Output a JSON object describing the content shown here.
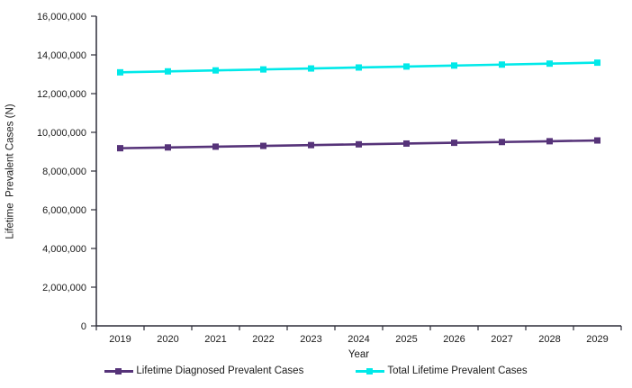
{
  "chart": {
    "y_axis_title": "Lifetime  Prevalent Cases (N)",
    "x_axis_label": "Year"
  },
  "colors": {
    "axis": "#2f2f3a",
    "text": "#1a1a1a",
    "diagnosed_series": "#563379",
    "total_series": "#00e9e9"
  },
  "chart_data": {
    "type": "line",
    "title": "",
    "xlabel": "Year",
    "ylabel": "Lifetime  Prevalent Cases (N)",
    "x": [
      2019,
      2020,
      2021,
      2022,
      2023,
      2024,
      2025,
      2026,
      2027,
      2028,
      2029
    ],
    "series": [
      {
        "name": "Lifetime Diagnosed Prevalent Cases",
        "color": "#563379",
        "marker": "square",
        "values": [
          9180000,
          9220000,
          9260000,
          9300000,
          9340000,
          9380000,
          9420000,
          9460000,
          9500000,
          9540000,
          9580000
        ]
      },
      {
        "name": "Total Lifetime Prevalent Cases",
        "color": "#00e9e9",
        "marker": "square",
        "values": [
          13100000,
          13150000,
          13200000,
          13250000,
          13300000,
          13350000,
          13400000,
          13450000,
          13500000,
          13550000,
          13600000
        ]
      }
    ],
    "ylim": [
      0,
      16000000
    ],
    "y_tick_interval": 2000000,
    "y_tick_labels": [
      "0",
      "2,000,000",
      "4,000,000",
      "6,000,000",
      "8,000,000",
      "10,000,000",
      "12,000,000",
      "14,000,000",
      "16,000,000"
    ],
    "grid": false,
    "legend_position": "bottom"
  }
}
